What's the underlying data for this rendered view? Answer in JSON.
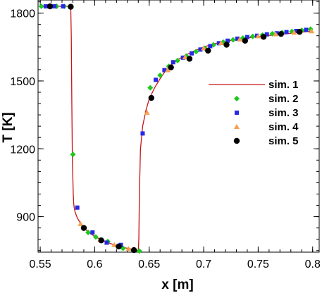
{
  "chart_data": {
    "type": "scatter",
    "xlabel": "x [m]",
    "ylabel": "T [K]",
    "xlim": [
      0.548,
      0.806
    ],
    "ylim": [
      743,
      1858
    ],
    "x_ticks": [
      0.55,
      0.6,
      0.65,
      0.7,
      0.75,
      0.8
    ],
    "x_tick_labels": [
      "0.55",
      "0.6",
      "0.65",
      "0.7",
      "0.75",
      "0.8"
    ],
    "y_ticks": [
      900,
      1200,
      1500,
      1800
    ],
    "y_tick_labels": [
      "900",
      "1200",
      "1500",
      "1800"
    ],
    "grid": false,
    "legend_position": "right",
    "series": [
      {
        "name": "sim. 1",
        "marker": "line",
        "color": "#c81414",
        "x": [
          0.55,
          0.56,
          0.57,
          0.575,
          0.578,
          0.5785,
          0.579,
          0.5795,
          0.58,
          0.5803,
          0.5807,
          0.581,
          0.582,
          0.584,
          0.587,
          0.59,
          0.595,
          0.6,
          0.605,
          0.61,
          0.615,
          0.62,
          0.625,
          0.63,
          0.635,
          0.638,
          0.64,
          0.6405,
          0.641,
          0.642,
          0.644,
          0.647,
          0.65,
          0.655,
          0.66,
          0.665,
          0.67,
          0.675,
          0.68,
          0.69,
          0.7,
          0.71,
          0.72,
          0.73,
          0.74,
          0.75,
          0.76,
          0.77,
          0.78,
          0.79,
          0.8
        ],
        "y": [
          1830,
          1830,
          1830,
          1830,
          1828,
          1700,
          1400,
          1150,
          1060,
          1000,
          960,
          945,
          920,
          895,
          870,
          850,
          830,
          812,
          800,
          790,
          780,
          772,
          765,
          760,
          755,
          752,
          750,
          800,
          1000,
          1200,
          1300,
          1370,
          1420,
          1470,
          1510,
          1545,
          1570,
          1590,
          1605,
          1630,
          1650,
          1665,
          1675,
          1683,
          1690,
          1696,
          1701,
          1706,
          1711,
          1716,
          1720
        ]
      },
      {
        "name": "sim. 2",
        "marker": "diamond",
        "color": "#1ec81e",
        "x": [
          0.551,
          0.558,
          0.565,
          0.572,
          0.58,
          0.594,
          0.601,
          0.612,
          0.626,
          0.641,
          0.651,
          0.66,
          0.668,
          0.676,
          0.684,
          0.693,
          0.701,
          0.709,
          0.718,
          0.727,
          0.736,
          0.745,
          0.754,
          0.763,
          0.772,
          0.781,
          0.79,
          0.798
        ],
        "y": [
          1830,
          1830,
          1830,
          1830,
          1175,
          830,
          810,
          790,
          760,
          748,
          1470,
          1525,
          1565,
          1590,
          1610,
          1630,
          1645,
          1660,
          1672,
          1682,
          1690,
          1697,
          1703,
          1709,
          1714,
          1719,
          1724,
          1729
        ]
      },
      {
        "name": "sim. 3",
        "marker": "square",
        "color": "#2828e6",
        "x": [
          0.555,
          0.563,
          0.571,
          0.584,
          0.598,
          0.611,
          0.624,
          0.644,
          0.656,
          0.664,
          0.672,
          0.681,
          0.689,
          0.697,
          0.706,
          0.714,
          0.722,
          0.731,
          0.74,
          0.749,
          0.758,
          0.767,
          0.776,
          0.785,
          0.794
        ],
        "y": [
          1830,
          1830,
          1830,
          940,
          830,
          785,
          775,
          1268,
          1505,
          1548,
          1583,
          1603,
          1622,
          1639,
          1654,
          1667,
          1678,
          1687,
          1694,
          1700,
          1706,
          1711,
          1716,
          1721,
          1726
        ]
      },
      {
        "name": "sim. 4",
        "marker": "triangle",
        "color": "#f5a050",
        "x": [
          0.587,
          0.605,
          0.618,
          0.631,
          0.648,
          0.667,
          0.683,
          0.7,
          0.716,
          0.733,
          0.75,
          0.766,
          0.783,
          0.799
        ],
        "y": [
          868,
          798,
          775,
          758,
          1360,
          1548,
          1605,
          1645,
          1668,
          1684,
          1698,
          1707,
          1714,
          1720
        ]
      },
      {
        "name": "sim. 5",
        "marker": "circle",
        "color": "#000000",
        "x": [
          0.559,
          0.578,
          0.59,
          0.606,
          0.622,
          0.636,
          0.652,
          0.67,
          0.687,
          0.704,
          0.721,
          0.738,
          0.755,
          0.771,
          0.788
        ],
        "y": [
          1830,
          1828,
          850,
          795,
          768,
          752,
          1425,
          1560,
          1598,
          1634,
          1660,
          1678,
          1695,
          1708,
          1717
        ]
      }
    ]
  }
}
